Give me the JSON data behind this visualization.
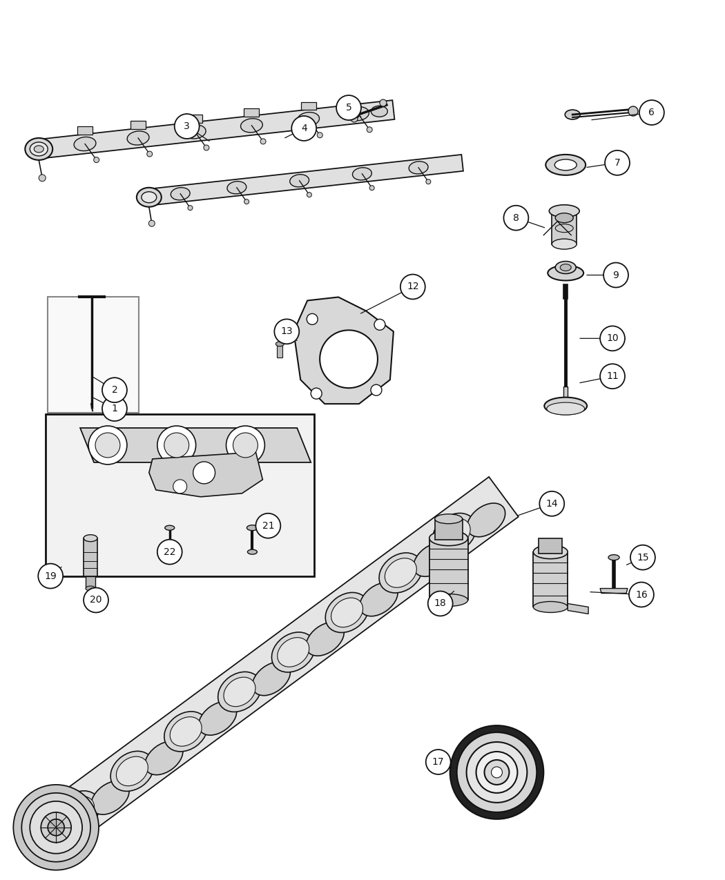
{
  "background_color": "#ffffff",
  "fig_width": 10.5,
  "fig_height": 12.75,
  "dpi": 100,
  "line_color": "#111111",
  "fill_light": "#e8e8e8",
  "fill_mid": "#cccccc",
  "fill_dark": "#aaaaaa"
}
